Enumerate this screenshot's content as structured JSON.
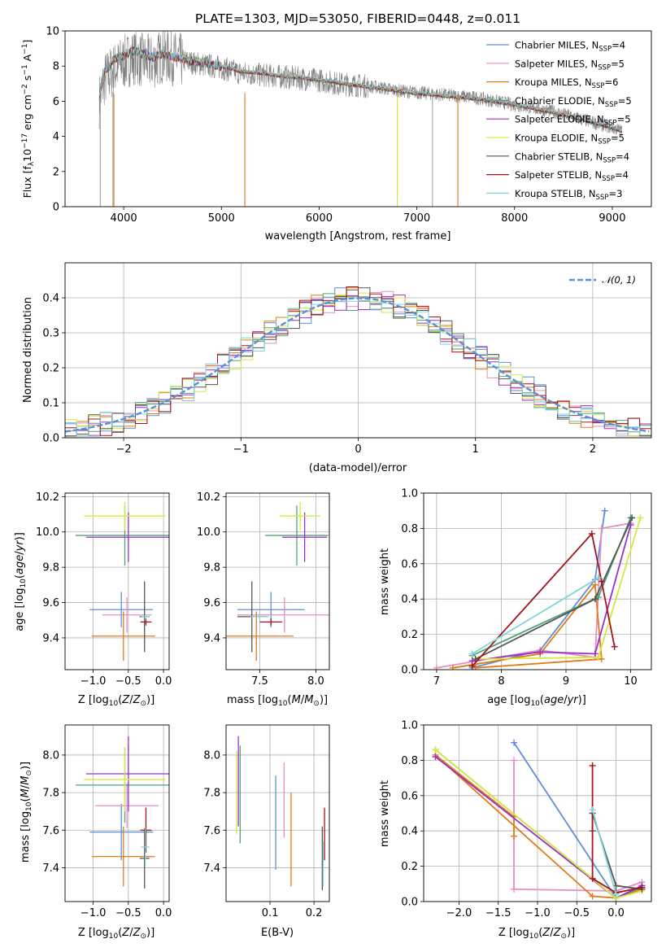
{
  "figure": {
    "title": "PLATE=1303, MJD=53050, FIBERID=0448, z=0.011"
  },
  "models": [
    {
      "name": "Chabrier MILES, N_SSP=4",
      "base": "Chabrier MILES, N",
      "sub": "SSP",
      "tail": "=4",
      "color": "#5b8fd9"
    },
    {
      "name": "Salpeter MILES, N_SSP=5",
      "base": "Salpeter MILES, N",
      "sub": "SSP",
      "tail": "=5",
      "color": "#e88ec0"
    },
    {
      "name": "Kroupa MILES, N_SSP=6",
      "base": "Kroupa MILES, N",
      "sub": "SSP",
      "tail": "=6",
      "color": "#e07b1a"
    },
    {
      "name": "Chabrier ELODIE, N_SSP=5",
      "base": "Chabrier ELODIE, N",
      "sub": "SSP",
      "tail": "=5",
      "color": "#4fa37a"
    },
    {
      "name": "Salpeter ELODIE, N_SSP=5",
      "base": "Salpeter ELODIE, N",
      "sub": "SSP",
      "tail": "=5",
      "color": "#9b30c8"
    },
    {
      "name": "Kroupa ELODIE, N_SSP=5",
      "base": "Kroupa ELODIE, N",
      "sub": "SSP",
      "tail": "=5",
      "color": "#d7e83a"
    },
    {
      "name": "Chabrier STELIB, N_SSP=4",
      "base": "Chabrier STELIB, N",
      "sub": "SSP",
      "tail": "=4",
      "color": "#555555"
    },
    {
      "name": "Salpeter STELIB, N_SSP=4",
      "base": "Salpeter STELIB, N",
      "sub": "SSP",
      "tail": "=4",
      "color": "#a3151d"
    },
    {
      "name": "Kroupa STELIB, N_SSP=3",
      "base": "Kroupa STELIB, N",
      "sub": "SSP",
      "tail": "=3",
      "color": "#7fd6d9"
    }
  ],
  "chart_data": [
    {
      "id": "spectrum",
      "type": "line",
      "xlabel": "wavelength [Angstrom, rest frame]",
      "ylabel": "Flux [f_λ10^-17 erg cm^-2 s^-1 A^-1]",
      "ylabel_parts": {
        "a": "Flux [f",
        "b": "λ",
        "c": "10",
        "d": "−17",
        "e": " erg cm",
        "f": "−2",
        "g": " s",
        "h": "−1",
        "i": " A",
        "j": "−1",
        "k": "]"
      },
      "xlim": [
        3400,
        9400
      ],
      "ylim": [
        0,
        10
      ],
      "xticks": [
        "4000",
        "5000",
        "6000",
        "7000",
        "8000",
        "9000"
      ],
      "yticks": [
        "0",
        "2",
        "4",
        "6",
        "8",
        "10"
      ],
      "data_series": {
        "name": "",
        "color": "#808080",
        "x": [
          3750,
          3800,
          3900,
          4000,
          4100,
          4200,
          4300,
          4400,
          4600,
          4800,
          5000,
          5200,
          5400,
          5600,
          5800,
          6000,
          6200,
          6400,
          6600,
          6800,
          7000,
          7200,
          7400,
          7600,
          7800,
          8000,
          8200,
          8400,
          8600,
          8800,
          9000,
          9100
        ],
        "y": [
          6.0,
          7.2,
          7.8,
          8.2,
          8.5,
          8.3,
          8.2,
          8.6,
          8.3,
          8.1,
          7.9,
          7.6,
          7.5,
          7.4,
          7.3,
          7.2,
          7.0,
          6.9,
          6.8,
          6.6,
          6.5,
          6.4,
          6.3,
          6.2,
          6.0,
          5.8,
          5.6,
          5.4,
          5.1,
          4.8,
          4.5,
          4.3
        ]
      },
      "model_curve": {
        "x": [
          3750,
          3800,
          3900,
          4000,
          4100,
          4200,
          4300,
          4400,
          4600,
          4800,
          5000,
          5200,
          5400,
          5600,
          5800,
          6000,
          6200,
          6400,
          6600,
          6800,
          7000,
          7200,
          7400,
          7600,
          7800,
          8000,
          8200,
          8400,
          8600,
          8800,
          9000,
          9100
        ],
        "y": [
          6.3,
          7.6,
          8.4,
          8.6,
          8.9,
          8.7,
          8.5,
          8.7,
          8.4,
          8.2,
          8.0,
          7.7,
          7.6,
          7.45,
          7.35,
          7.2,
          7.05,
          6.9,
          6.75,
          6.6,
          6.45,
          6.35,
          6.25,
          6.15,
          6.0,
          5.8,
          5.6,
          5.35,
          5.1,
          4.8,
          4.5,
          4.3
        ]
      },
      "drop_lines": [
        {
          "x": 3760,
          "y": 0
        },
        {
          "x": 3890,
          "y": 0
        },
        {
          "x": 5240,
          "y": 0
        },
        {
          "x": 6800,
          "y": 0
        },
        {
          "x": 7160,
          "y": 0
        },
        {
          "x": 7420,
          "y": 0.5
        }
      ]
    },
    {
      "id": "residuals",
      "type": "line",
      "xlabel": "(data-model)/error",
      "ylabel": "Normed distribution",
      "xlim": [
        -2.5,
        2.5
      ],
      "ylim": [
        0,
        0.5
      ],
      "xticks": [
        "−2",
        "−1",
        "0",
        "1",
        "2"
      ],
      "yticks": [
        "0.0",
        "0.1",
        "0.2",
        "0.3",
        "0.4"
      ],
      "legend": {
        "label": "𝒩(0, 1)",
        "placement": "top-right"
      },
      "normal_curve": {
        "name": "𝒩(0, 1)",
        "color": "#5b8fd9",
        "mu": 0,
        "sigma": 1
      },
      "histogram_bin_width": 0.1
    },
    {
      "id": "age-vs-Z",
      "type": "scatter",
      "xlabel": "Z [log10(Z/Z⊙)]",
      "ylabel": "age  [log10(age/yr)]",
      "xlim": [
        -1.4,
        0.08
      ],
      "ylim": [
        9.22,
        10.22
      ],
      "xticks": [
        "−1.0",
        "−0.5",
        "0.0"
      ],
      "yticks": [
        "9.4",
        "9.6",
        "9.8",
        "10.0",
        "10.2"
      ],
      "points": [
        {
          "model": 0,
          "x": -0.6,
          "y": 9.56,
          "xerr": 0.45,
          "yerr": 0.1
        },
        {
          "model": 1,
          "x": -0.52,
          "y": 9.53,
          "xerr": 0.35,
          "yerr": 0.1
        },
        {
          "model": 2,
          "x": -0.57,
          "y": 9.41,
          "xerr": 0.45,
          "yerr": 0.14
        },
        {
          "model": 3,
          "x": -0.55,
          "y": 9.98,
          "xerr": 0.7,
          "yerr": 0.17
        },
        {
          "model": 4,
          "x": -0.5,
          "y": 9.97,
          "xerr": 0.6,
          "yerr": 0.14
        },
        {
          "model": 5,
          "x": -0.55,
          "y": 10.09,
          "xerr": 0.58,
          "yerr": 0.08
        },
        {
          "model": 6,
          "x": -0.27,
          "y": 9.52,
          "xerr": 0.07,
          "yerr": 0.2
        },
        {
          "model": 7,
          "x": -0.25,
          "y": 9.49,
          "xerr": 0.08,
          "yerr": 0.02
        },
        {
          "model": 8,
          "x": -0.26,
          "y": 9.52,
          "xerr": 0.06,
          "yerr": 0.02
        }
      ]
    },
    {
      "id": "age-vs-mass",
      "type": "scatter",
      "xlabel": "mass [log10(M/M⊙)]",
      "ylabel": "",
      "xlim": [
        7.2,
        8.12
      ],
      "ylim": [
        9.22,
        10.22
      ],
      "xticks": [
        "7.5",
        "8.0"
      ],
      "yticks": [
        "9.4",
        "9.6",
        "9.8",
        "10.0",
        "10.2"
      ],
      "points": [
        {
          "model": 0,
          "x": 7.6,
          "y": 9.56,
          "xerr": 0.3,
          "yerr": 0.1
        },
        {
          "model": 1,
          "x": 7.72,
          "y": 9.53,
          "xerr": 0.42,
          "yerr": 0.1
        },
        {
          "model": 2,
          "x": 7.47,
          "y": 9.41,
          "xerr": 0.33,
          "yerr": 0.14
        },
        {
          "model": 3,
          "x": 7.83,
          "y": 9.98,
          "xerr": 0.28,
          "yerr": 0.17
        },
        {
          "model": 4,
          "x": 7.9,
          "y": 9.97,
          "xerr": 0.2,
          "yerr": 0.14
        },
        {
          "model": 5,
          "x": 7.86,
          "y": 10.09,
          "xerr": 0.18,
          "yerr": 0.08
        },
        {
          "model": 6,
          "x": 7.43,
          "y": 9.52,
          "xerr": 0.13,
          "yerr": 0.2
        },
        {
          "model": 7,
          "x": 7.6,
          "y": 9.49,
          "xerr": 0.1,
          "yerr": 0.02
        },
        {
          "model": 8,
          "x": 7.5,
          "y": 9.52,
          "xerr": 0.08,
          "yerr": 0.02
        }
      ]
    },
    {
      "id": "mass-weight-vs-age",
      "type": "line",
      "xlabel": "age  [log10(age/yr)]",
      "ylabel": "mass weight",
      "xlim": [
        6.8,
        10.32
      ],
      "ylim": [
        0,
        1
      ],
      "xticks": [
        "7",
        "8",
        "9",
        "10"
      ],
      "yticks": [
        "0.0",
        "0.2",
        "0.4",
        "0.6",
        "0.8",
        "1.0"
      ],
      "series": [
        {
          "model": 0,
          "x": [
            7.55,
            8.6,
            9.45,
            9.6
          ],
          "y": [
            0.01,
            0.11,
            0.51,
            0.9
          ]
        },
        {
          "model": 1,
          "x": [
            7.0,
            8.6,
            9.45,
            9.55,
            10.0
          ],
          "y": [
            0.01,
            0.11,
            0.07,
            0.8,
            0.83
          ]
        },
        {
          "model": 2,
          "x": [
            7.25,
            8.6,
            9.45,
            9.55,
            7.6
          ],
          "y": [
            0.01,
            0.09,
            0.48,
            0.06,
            0.01
          ]
        },
        {
          "model": 3,
          "x": [
            7.55,
            9.5,
            10.0
          ],
          "y": [
            0.08,
            0.41,
            0.86
          ]
        },
        {
          "model": 4,
          "x": [
            7.55,
            8.6,
            9.45,
            10.0
          ],
          "y": [
            0.05,
            0.1,
            0.09,
            0.82
          ]
        },
        {
          "model": 5,
          "x": [
            7.6,
            9.5,
            10.15
          ],
          "y": [
            0.06,
            0.07,
            0.86
          ]
        },
        {
          "model": 6,
          "x": [
            7.6,
            9.45,
            10.02
          ],
          "y": [
            0.06,
            0.4,
            0.86
          ]
        },
        {
          "model": 7,
          "x": [
            7.55,
            9.4,
            9.55,
            9.75
          ],
          "y": [
            0.02,
            0.77,
            0.5,
            0.13
          ]
        },
        {
          "model": 8,
          "x": [
            7.55,
            9.5
          ],
          "y": [
            0.09,
            0.52
          ]
        }
      ]
    },
    {
      "id": "mass-vs-Z",
      "type": "scatter",
      "xlabel": "Z [log10(Z/Z⊙)]",
      "ylabel": "mass [log10(M/M⊙)]",
      "xlim": [
        -1.4,
        0.08
      ],
      "ylim": [
        7.22,
        8.16
      ],
      "xticks": [
        "−1.0",
        "−0.5",
        "0.0"
      ],
      "yticks": [
        "7.4",
        "7.6",
        "7.8",
        "8.0"
      ],
      "points": [
        {
          "model": 0,
          "x": -0.6,
          "y": 7.59,
          "xerr": 0.45,
          "yerr": 0.15
        },
        {
          "model": 1,
          "x": -0.52,
          "y": 7.73,
          "xerr": 0.45,
          "yerr": 0.12
        },
        {
          "model": 2,
          "x": -0.57,
          "y": 7.46,
          "xerr": 0.45,
          "yerr": 0.16
        },
        {
          "model": 3,
          "x": -0.55,
          "y": 7.84,
          "xerr": 0.7,
          "yerr": 0.2
        },
        {
          "model": 4,
          "x": -0.5,
          "y": 7.9,
          "xerr": 0.6,
          "yerr": 0.2
        },
        {
          "model": 5,
          "x": -0.55,
          "y": 7.87,
          "xerr": 0.58,
          "yerr": 0.17
        },
        {
          "model": 6,
          "x": -0.27,
          "y": 7.45,
          "xerr": 0.07,
          "yerr": 0.16
        },
        {
          "model": 7,
          "x": -0.25,
          "y": 7.6,
          "xerr": 0.08,
          "yerr": 0.12
        },
        {
          "model": 8,
          "x": -0.26,
          "y": 7.51,
          "xerr": 0.06,
          "yerr": 0.1
        }
      ]
    },
    {
      "id": "mass-vs-EBV",
      "type": "scatter",
      "xlabel": "E(B-V)",
      "ylabel": "",
      "xlim": [
        0.0,
        0.235
      ],
      "ylim": [
        7.22,
        8.16
      ],
      "xticks": [
        "0.1",
        "0.2"
      ],
      "yticks": [
        "7.4",
        "7.6",
        "7.8",
        "8.0"
      ],
      "points": [
        {
          "model": 0,
          "x": 0.113,
          "y": 7.64,
          "xerr": 0,
          "yerr": 0.25
        },
        {
          "model": 1,
          "x": 0.132,
          "y": 7.76,
          "xerr": 0,
          "yerr": 0.2
        },
        {
          "model": 2,
          "x": 0.148,
          "y": 7.55,
          "xerr": 0,
          "yerr": 0.25
        },
        {
          "model": 3,
          "x": 0.032,
          "y": 7.79,
          "xerr": 0,
          "yerr": 0.26
        },
        {
          "model": 4,
          "x": 0.028,
          "y": 7.86,
          "xerr": 0,
          "yerr": 0.24
        },
        {
          "model": 5,
          "x": 0.024,
          "y": 7.8,
          "xerr": 0,
          "yerr": 0.22
        },
        {
          "model": 6,
          "x": 0.219,
          "y": 7.45,
          "xerr": 0,
          "yerr": 0.17
        },
        {
          "model": 7,
          "x": 0.224,
          "y": 7.58,
          "xerr": 0,
          "yerr": 0.14
        },
        {
          "model": 8,
          "x": 0.221,
          "y": 7.42,
          "xerr": 0,
          "yerr": 0.12
        }
      ]
    },
    {
      "id": "mass-weight-vs-Z",
      "type": "line",
      "xlabel": "Z [log10(Z/Z⊙)]",
      "ylabel": "mass weight",
      "xlim": [
        -2.45,
        0.45
      ],
      "ylim": [
        0,
        1
      ],
      "xticks": [
        "−2.0",
        "−1.5",
        "−1.0",
        "−0.5",
        "0.0"
      ],
      "yticks": [
        "0.0",
        "0.2",
        "0.4",
        "0.6",
        "0.8",
        "1.0"
      ],
      "series": [
        {
          "model": 0,
          "x": [
            -1.3,
            0.0,
            0.33
          ],
          "y": [
            0.9,
            0.02,
            0.09
          ]
        },
        {
          "model": 1,
          "x": [
            -1.3,
            -1.3,
            0.0,
            0.33
          ],
          "y": [
            0.8,
            0.07,
            0.06,
            0.11
          ]
        },
        {
          "model": 2,
          "x": [
            -1.3,
            -1.3,
            -2.3,
            -0.3,
            0.0,
            0.33
          ],
          "y": [
            0.37,
            0.48,
            0.83,
            0.03,
            0.02,
            0.07
          ]
        },
        {
          "model": 3,
          "x": [
            -2.3,
            0.0,
            0.33
          ],
          "y": [
            0.86,
            0.02,
            0.08
          ]
        },
        {
          "model": 4,
          "x": [
            -2.3,
            0.0,
            0.33
          ],
          "y": [
            0.82,
            0.02,
            0.09
          ]
        },
        {
          "model": 5,
          "x": [
            -2.3,
            0.0,
            0.33
          ],
          "y": [
            0.86,
            0.02,
            0.06
          ]
        },
        {
          "model": 6,
          "x": [
            -0.3,
            -0.3,
            0.0,
            0.33
          ],
          "y": [
            0.4,
            0.5,
            0.09,
            0.07
          ]
        },
        {
          "model": 7,
          "x": [
            -0.3,
            -0.3,
            0.0,
            0.33
          ],
          "y": [
            0.77,
            0.13,
            0.05,
            0.08
          ]
        },
        {
          "model": 8,
          "x": [
            -0.3,
            0.0
          ],
          "y": [
            0.52,
            0.04
          ]
        }
      ]
    }
  ]
}
